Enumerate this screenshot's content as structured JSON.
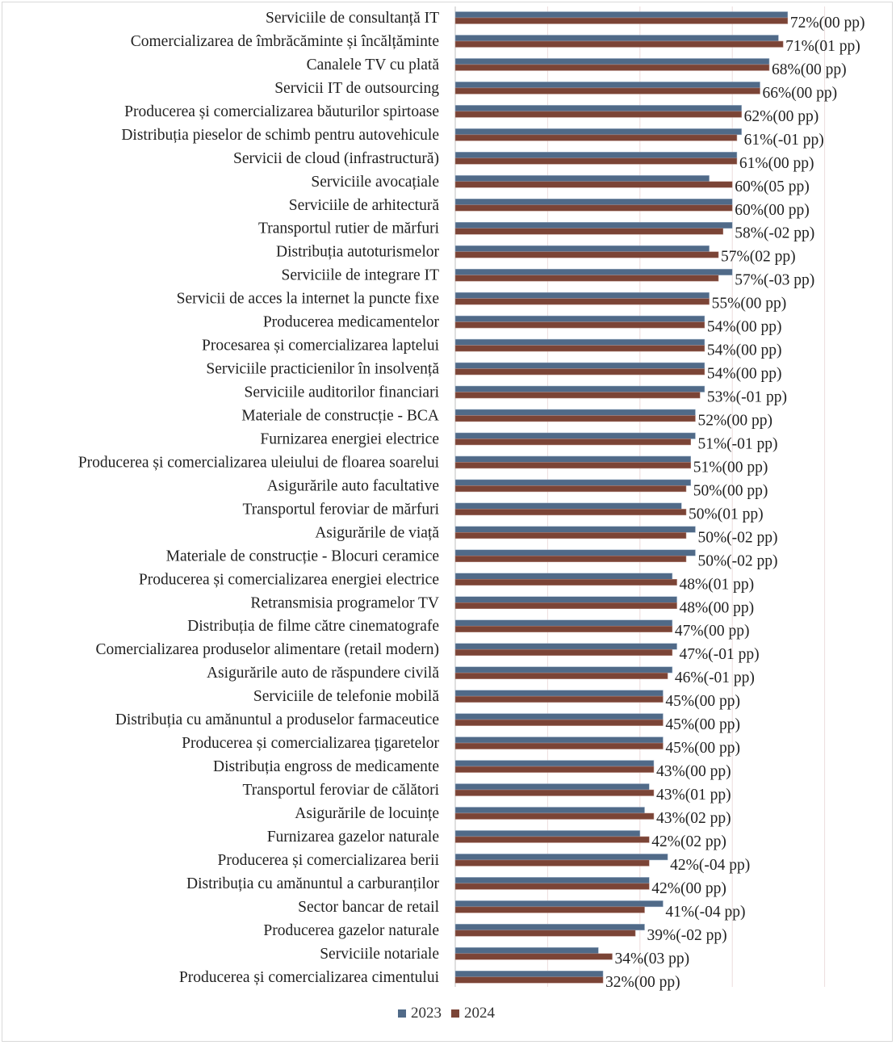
{
  "chart_data": {
    "type": "bar",
    "orientation": "horizontal",
    "title": "",
    "xlabel": "",
    "ylabel": "",
    "xlim": [
      0,
      80
    ],
    "grid": true,
    "legend_position": "bottom",
    "colors": {
      "2023": "#506a88",
      "2024": "#7b4436"
    },
    "categories": [
      "Serviciile de consultanță IT",
      "Comercializarea de îmbrăcăminte și încălțăminte",
      "Canalele TV cu plată",
      "Servicii IT de outsourcing",
      "Producerea și comercializarea băuturilor spirtoase",
      "Distribuția pieselor de schimb pentru autovehicule",
      "Servicii de cloud (infrastructură)",
      "Serviciile avocațiale",
      "Serviciile de arhitectură",
      "Transportul rutier de mărfuri",
      "Distribuția autoturismelor",
      "Serviciile de integrare IT",
      "Servicii de acces la internet la puncte fixe",
      "Producerea  medicamentelor",
      "Procesarea și comercializarea laptelui",
      "Serviciile practicienilor în insolvență",
      "Serviciile auditorilor financiari",
      "Materiale de construcție - BCA",
      "Furnizarea energiei electrice",
      "Producerea și comercializarea uleiului de floarea soarelui",
      "Asigurările auto facultative",
      "Transportul feroviar de mărfuri",
      "Asigurările de viață",
      "Materiale de construcție - Blocuri ceramice",
      "Producerea și comercializarea energiei electrice",
      "Retransmisia programelor TV",
      "Distribuția de filme către cinematografe",
      "Comercializarea produselor alimentare (retail modern)",
      "Asigurările auto de răspundere civilă",
      "Serviciile de telefonie mobilă",
      "Distribuția cu amănuntul a produselor farmaceutice",
      "Producerea și comercializarea țigaretelor",
      "Distribuția engross de medicamente",
      "Transportul feroviar de călători",
      "Asigurările de locuințe",
      "Furnizarea gazelor naturale",
      "Producerea și comercializarea berii",
      "Distribuția cu amănuntul a carburanților",
      "Sector bancar de retail",
      "Producerea gazelor naturale",
      "Serviciile notariale",
      "Producerea și comercializarea cimentului"
    ],
    "series": [
      {
        "name": "2023",
        "values": [
          72,
          70,
          68,
          66,
          62,
          62,
          61,
          55,
          60,
          60,
          55,
          60,
          55,
          54,
          54,
          54,
          54,
          52,
          52,
          51,
          51,
          49,
          52,
          52,
          47,
          48,
          47,
          48,
          47,
          45,
          45,
          45,
          43,
          42,
          41,
          40,
          46,
          42,
          45,
          41,
          31,
          32
        ]
      },
      {
        "name": "2024",
        "values": [
          72,
          71,
          68,
          66,
          62,
          61,
          61,
          60,
          60,
          58,
          57,
          57,
          55,
          54,
          54,
          54,
          53,
          52,
          51,
          51,
          50,
          50,
          50,
          50,
          48,
          48,
          47,
          47,
          46,
          45,
          45,
          45,
          43,
          43,
          43,
          42,
          42,
          42,
          41,
          39,
          34,
          32
        ]
      }
    ],
    "data_labels": [
      "72%(00 pp)",
      "71%(01 pp)",
      "68%(00 pp)",
      "66%(00 pp)",
      "62%(00 pp)",
      "61%(-01 pp)",
      "61%(00 pp)",
      "60%(05 pp)",
      "60%(00 pp)",
      "58%(-02 pp)",
      "57%(02 pp)",
      "57%(-03 pp)",
      "55%(00 pp)",
      "54%(00 pp)",
      "54%(00 pp)",
      "54%(00 pp)",
      "53%(-01 pp)",
      "52%(00 pp)",
      "51%(-01 pp)",
      "51%(00 pp)",
      "50%(00 pp)",
      "50%(01 pp)",
      "50%(-02 pp)",
      "50%(-02 pp)",
      "48%(01 pp)",
      "48%(00 pp)",
      "47%(00 pp)",
      "47%(-01 pp)",
      "46%(-01 pp)",
      "45%(00 pp)",
      "45%(00 pp)",
      "45%(00 pp)",
      "43%(00 pp)",
      "43%(01 pp)",
      "43%(02 pp)",
      "42%(02 pp)",
      "42%(-04 pp)",
      "42%(00 pp)",
      "41%(-04 pp)",
      "39%(-02 pp)",
      "34%(03 pp)",
      "32%(00 pp)"
    ],
    "legend": [
      "2023",
      "2024"
    ]
  }
}
